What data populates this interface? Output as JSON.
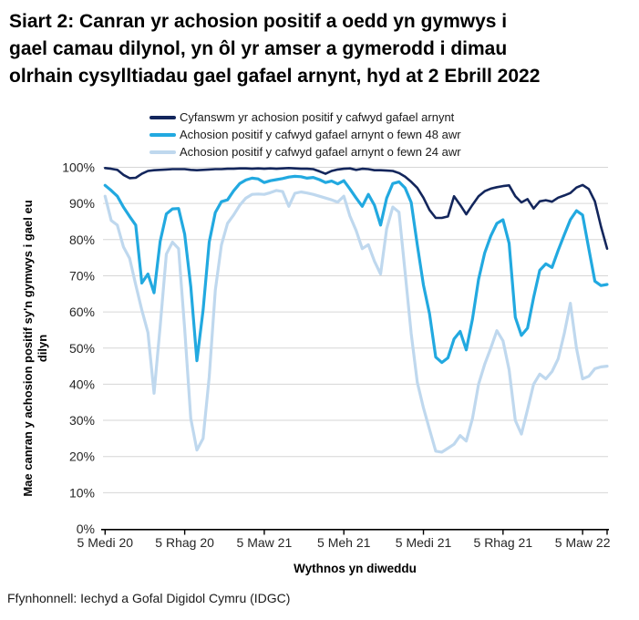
{
  "title_lines": [
    "Siart 2: Canran yr achosion positif a oedd yn gymwys i",
    "gael camau dilynol, yn ôl yr amser a gymerodd i dimau",
    "olrhain cysylltiadau gael gafael arnynt, hyd at 2 Ebrill 2022"
  ],
  "footer": "Ffynhonnell: Iechyd a Gofal Digidol Cymru (IDGC)",
  "chart_data": {
    "type": "line",
    "title": "Siart 2: Canran yr achosion positif a oedd yn gymwys i gael camau dilynol, yn ôl yr amser a gymerodd i dimau olrhain cysylltiadau gael gafael arnynt, hyd at 2 Ebrill 2022",
    "xlabel": "Wythnos yn diweddu",
    "ylabel": "Mae canran y achosion positif sy'n gymwys i gael eu dilyn",
    "ylabel_lines": [
      "Mae canran y achosion positif sy'n gymwys i gael eu",
      "dilyn"
    ],
    "ylim": [
      0,
      100
    ],
    "grid": true,
    "legend_position": "top",
    "y_ticks": [
      {
        "value": 0,
        "label": "0%"
      },
      {
        "value": 10,
        "label": "10%"
      },
      {
        "value": 20,
        "label": "20%"
      },
      {
        "value": 30,
        "label": "30%"
      },
      {
        "value": 40,
        "label": "40%"
      },
      {
        "value": 50,
        "label": "50%"
      },
      {
        "value": 60,
        "label": "60%"
      },
      {
        "value": 70,
        "label": "70%"
      },
      {
        "value": 80,
        "label": "80%"
      },
      {
        "value": 90,
        "label": "90%"
      },
      {
        "value": 100,
        "label": "100%"
      }
    ],
    "x_ticks": [
      {
        "label": "5 Medi 20",
        "index": 0
      },
      {
        "label": "5 Rhag 20",
        "index": 13
      },
      {
        "label": "5 Maw 21",
        "index": 26
      },
      {
        "label": "5 Meh 21",
        "index": 39
      },
      {
        "label": "5 Medi 21",
        "index": 52
      },
      {
        "label": "5 Rhag 21",
        "index": 65
      },
      {
        "label": "5 Maw 22",
        "index": 78
      }
    ],
    "series": [
      {
        "name": "Cyfanswm yr achosion positif y cafwyd gafael arnynt",
        "color": "#13265c",
        "values": [
          99.8,
          99.6,
          99.3,
          97.9,
          97.0,
          97.1,
          98.2,
          99.0,
          99.2,
          99.3,
          99.4,
          99.5,
          99.5,
          99.5,
          99.3,
          99.2,
          99.3,
          99.4,
          99.5,
          99.5,
          99.6,
          99.6,
          99.7,
          99.7,
          99.6,
          99.7,
          99.6,
          99.7,
          99.6,
          99.7,
          99.8,
          99.7,
          99.6,
          99.6,
          99.5,
          98.9,
          98.2,
          99.0,
          99.4,
          99.6,
          99.7,
          99.3,
          99.6,
          99.5,
          99.2,
          99.2,
          99.1,
          99.0,
          98.4,
          97.4,
          96.0,
          94.3,
          91.6,
          88.2,
          86.0,
          86.0,
          86.4,
          92.0,
          89.6,
          87.0,
          89.6,
          92.0,
          93.4,
          94.1,
          94.5,
          94.8,
          95.0,
          92.0,
          90.3,
          91.2,
          88.6,
          90.6,
          90.9,
          90.5,
          91.6,
          92.2,
          92.9,
          94.4,
          95.1,
          94.0,
          90.6,
          83.6,
          77.5
        ]
      },
      {
        "name": "Achosion positif y cafwyd gafael arnynt o fewn 48 awr",
        "color": "#22a9e0",
        "values": [
          95.0,
          93.6,
          92.0,
          89.0,
          86.4,
          84.0,
          68.0,
          70.5,
          65.3,
          79.5,
          87.1,
          88.5,
          88.6,
          81.5,
          67.0,
          46.5,
          60.5,
          79.3,
          87.5,
          90.5,
          91.0,
          93.5,
          95.5,
          96.5,
          97.0,
          96.8,
          95.8,
          96.3,
          96.6,
          96.9,
          97.3,
          97.5,
          97.4,
          97.0,
          97.2,
          96.6,
          95.8,
          96.2,
          95.4,
          96.3,
          94.0,
          91.5,
          89.2,
          92.5,
          89.5,
          84.0,
          91.5,
          95.5,
          96.0,
          94.3,
          90.3,
          78.5,
          67.5,
          59.5,
          47.5,
          46.0,
          47.3,
          52.5,
          54.6,
          49.5,
          58.0,
          69.0,
          76.3,
          81.0,
          84.5,
          85.5,
          79.0,
          58.5,
          53.5,
          55.5,
          64.0,
          71.5,
          73.3,
          72.3,
          77.0,
          81.3,
          85.5,
          88.0,
          86.8,
          77.5,
          68.5,
          67.3,
          67.6
        ]
      },
      {
        "name": "Achosion positif y cafwyd gafael arnynt o fewn 24 awr",
        "color": "#bfd8ee",
        "values": [
          92.0,
          85.3,
          84.0,
          78.0,
          74.8,
          67.5,
          60.5,
          54.3,
          37.5,
          56.0,
          76.0,
          79.3,
          77.5,
          55.3,
          30.5,
          21.8,
          25.0,
          42.0,
          66.0,
          78.5,
          84.5,
          86.8,
          89.5,
          91.5,
          92.5,
          92.6,
          92.5,
          93.0,
          93.6,
          93.3,
          89.2,
          92.8,
          93.2,
          92.9,
          92.5,
          92.0,
          91.5,
          91.0,
          90.4,
          92.0,
          86.5,
          82.5,
          77.5,
          78.6,
          74.0,
          70.5,
          83.0,
          89.0,
          87.6,
          71.0,
          54.0,
          40.5,
          33.5,
          27.5,
          21.5,
          21.2,
          22.3,
          23.4,
          25.8,
          24.3,
          30.5,
          40.0,
          45.5,
          50.0,
          54.8,
          52.0,
          44.0,
          30.0,
          26.2,
          33.0,
          40.0,
          42.8,
          41.5,
          43.5,
          47.0,
          54.0,
          62.4,
          50.0,
          41.5,
          42.2,
          44.3,
          44.8,
          45.0
        ]
      }
    ]
  }
}
